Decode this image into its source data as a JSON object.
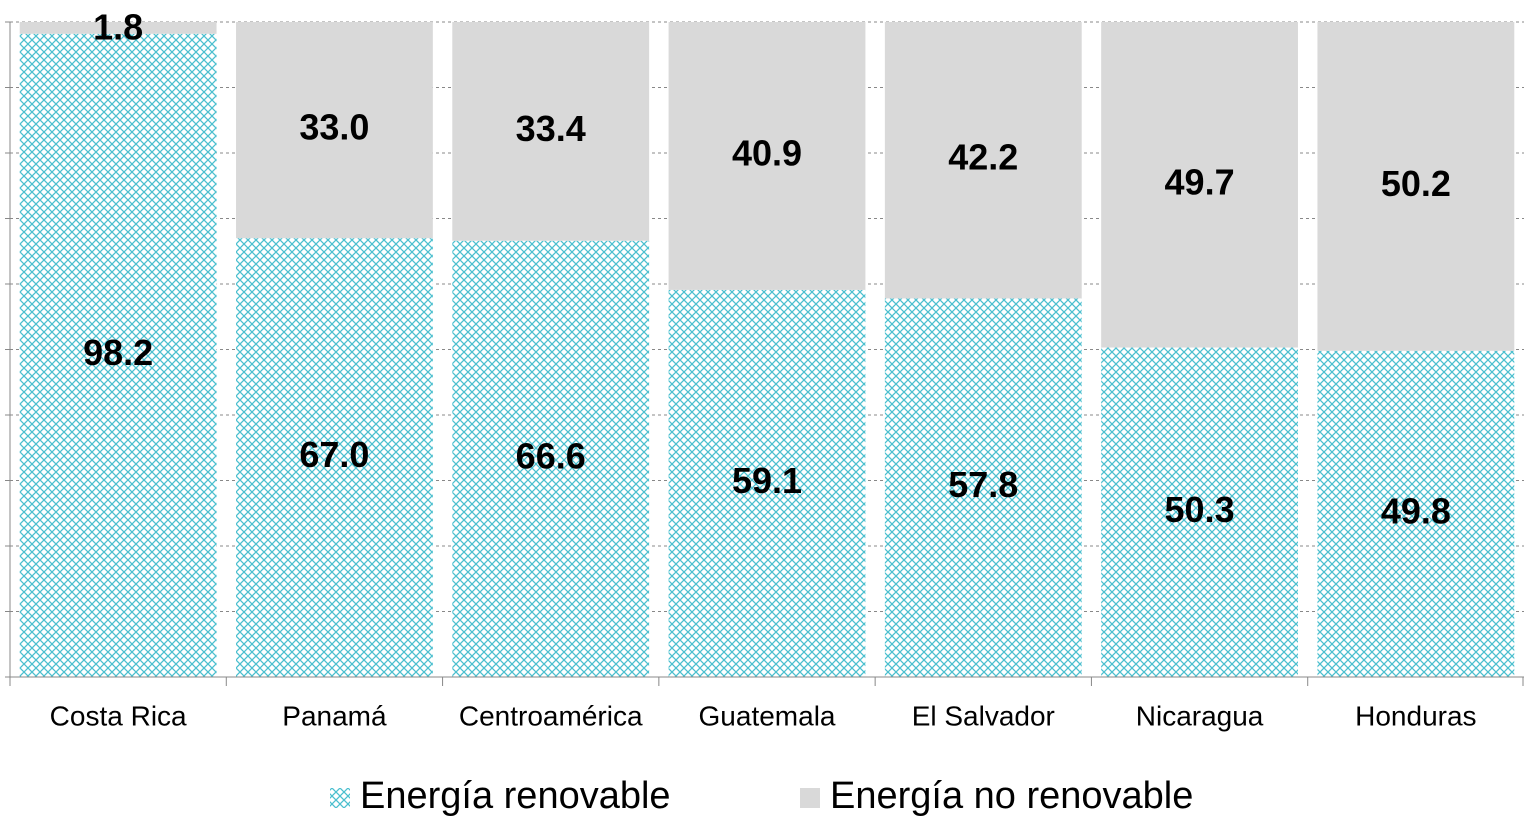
{
  "chart_data": {
    "type": "bar",
    "stacked": true,
    "categories": [
      "Costa Rica",
      "Panamá",
      "Centroamérica",
      "Guatemala",
      "El Salvador",
      "Nicaragua",
      "Honduras"
    ],
    "series": [
      {
        "name": "Energía renovable",
        "color": "#4bbfcf",
        "pattern": "crosshatch",
        "values": [
          98.2,
          67.0,
          66.6,
          59.1,
          57.8,
          50.3,
          49.8
        ],
        "value_labels": [
          "98.2",
          "67.0",
          "66.6",
          "59.1",
          "57.8",
          "50.3",
          "49.8"
        ]
      },
      {
        "name": "Energía no renovable",
        "color": "#d9d9d9",
        "values": [
          1.8,
          33.0,
          33.4,
          40.9,
          42.2,
          49.7,
          50.2
        ],
        "value_labels": [
          "1.8",
          "33.0",
          "33.4",
          "40.9",
          "42.2",
          "49.7",
          "50.2"
        ]
      }
    ],
    "ylim": [
      0,
      100
    ],
    "yticks": [
      0,
      10,
      20,
      30,
      40,
      50,
      60,
      70,
      80,
      90,
      100
    ],
    "grid": true,
    "legend": "bottom"
  }
}
